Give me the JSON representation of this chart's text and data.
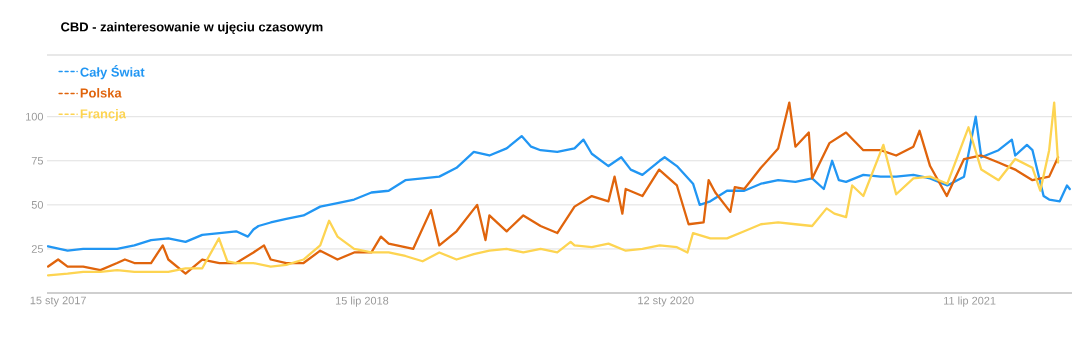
{
  "chart_data": {
    "type": "line",
    "title": "CBD - zainteresowanie w ujęciu czasowym",
    "xlim": [
      "2016-12-26",
      "2022-01-11"
    ],
    "ylim": [
      0,
      135
    ],
    "xticks": [
      {
        "value": "2017-01-15",
        "label": "15 sty 2017"
      },
      {
        "value": "2018-07-15",
        "label": "15 lip 2018"
      },
      {
        "value": "2020-01-12",
        "label": "12 sty 2020"
      },
      {
        "value": "2021-07-11",
        "label": "11 lip 2021"
      }
    ],
    "yticks": [
      25,
      50,
      75,
      100
    ],
    "grid": "y",
    "legend": "top left",
    "marker": "none",
    "line_style": "solid",
    "series": [
      {
        "name": "Cały Świat",
        "color": "#2196f3",
        "x": [
          "2016-12-28",
          "2017-02-01",
          "2017-03-01",
          "2017-04-01",
          "2017-05-01",
          "2017-06-01",
          "2017-07-01",
          "2017-08-01",
          "2017-09-01",
          "2017-10-01",
          "2017-11-01",
          "2017-12-01",
          "2017-12-22",
          "2018-01-01",
          "2018-01-10",
          "2018-02-01",
          "2018-03-01",
          "2018-04-01",
          "2018-05-01",
          "2018-06-01",
          "2018-07-01",
          "2018-08-01",
          "2018-09-01",
          "2018-10-01",
          "2018-11-01",
          "2018-12-01",
          "2019-01-01",
          "2019-02-01",
          "2019-03-01",
          "2019-04-01",
          "2019-04-28",
          "2019-05-15",
          "2019-06-01",
          "2019-07-01",
          "2019-08-01",
          "2019-08-17",
          "2019-09-01",
          "2019-10-01",
          "2019-10-24",
          "2019-11-10",
          "2019-12-01",
          "2020-01-01",
          "2020-01-10",
          "2020-02-01",
          "2020-03-01",
          "2020-03-13",
          "2020-04-01",
          "2020-05-01",
          "2020-06-01",
          "2020-07-01",
          "2020-08-01",
          "2020-09-01",
          "2020-10-01",
          "2020-10-22",
          "2020-11-06",
          "2020-11-18",
          "2020-12-01",
          "2021-01-01",
          "2021-02-01",
          "2021-03-01",
          "2021-04-01",
          "2021-05-01",
          "2021-06-01",
          "2021-07-01",
          "2021-07-22",
          "2021-08-01",
          "2021-09-01",
          "2021-09-25",
          "2021-10-01",
          "2021-10-22",
          "2021-11-01",
          "2021-11-21",
          "2021-12-01",
          "2021-12-20",
          "2022-01-02",
          "2022-01-07"
        ],
        "values": [
          26.5,
          24,
          25,
          25,
          25,
          27,
          30,
          31,
          29,
          33,
          34,
          35,
          32,
          36,
          38,
          40,
          42,
          44,
          49,
          51,
          53,
          57,
          58,
          64,
          65,
          66,
          71,
          80,
          78,
          82,
          89,
          83,
          81,
          80,
          82,
          87,
          79,
          72,
          77,
          70,
          67,
          75,
          77,
          72,
          62,
          50,
          52,
          58,
          58,
          62,
          64,
          63,
          65,
          59,
          75,
          64,
          63,
          67,
          66,
          66,
          67,
          65,
          61,
          66,
          100,
          77,
          81,
          87,
          78,
          84,
          81,
          55,
          53,
          52,
          61,
          59
        ]
      },
      {
        "name": "Polska",
        "color": "#e0640c",
        "x": [
          "2016-12-28",
          "2017-01-15",
          "2017-02-01",
          "2017-03-01",
          "2017-04-01",
          "2017-05-01",
          "2017-05-15",
          "2017-06-01",
          "2017-07-01",
          "2017-07-22",
          "2017-08-01",
          "2017-09-01",
          "2017-10-01",
          "2017-11-01",
          "2017-12-01",
          "2018-01-01",
          "2018-01-20",
          "2018-02-01",
          "2018-03-01",
          "2018-04-01",
          "2018-05-01",
          "2018-06-01",
          "2018-07-01",
          "2018-08-01",
          "2018-08-18",
          "2018-09-01",
          "2018-10-15",
          "2018-11-16",
          "2018-12-01",
          "2019-01-01",
          "2019-02-07",
          "2019-02-22",
          "2019-03-01",
          "2019-04-01",
          "2019-05-01",
          "2019-06-01",
          "2019-07-01",
          "2019-08-01",
          "2019-09-01",
          "2019-10-01",
          "2019-10-12",
          "2019-10-26",
          "2019-11-01",
          "2019-12-01",
          "2019-12-31",
          "2020-02-01",
          "2020-02-22",
          "2020-03-20",
          "2020-03-29",
          "2020-04-10",
          "2020-05-07",
          "2020-05-15",
          "2020-06-01",
          "2020-07-01",
          "2020-08-01",
          "2020-08-21",
          "2020-09-01",
          "2020-09-25",
          "2020-10-01",
          "2020-11-01",
          "2020-12-01",
          "2021-01-01",
          "2021-02-01",
          "2021-03-01",
          "2021-04-01",
          "2021-04-12",
          "2021-05-01",
          "2021-05-31",
          "2021-07-01",
          "2021-08-01",
          "2021-09-01",
          "2021-10-01",
          "2021-11-01",
          "2021-12-01",
          "2021-12-17"
        ],
        "values": [
          15,
          19,
          15,
          15,
          13,
          17,
          19,
          17,
          17,
          27,
          19,
          11,
          19,
          17,
          17,
          23,
          27,
          19,
          17,
          17,
          24,
          19,
          23,
          23,
          32,
          28,
          25,
          47,
          27,
          35,
          50,
          30,
          44,
          35,
          44,
          38,
          34,
          49,
          55,
          52,
          66,
          45,
          59,
          55,
          70,
          61,
          39,
          40,
          64,
          57,
          46,
          60,
          59,
          71,
          82,
          108,
          83,
          91,
          65,
          85,
          91,
          81,
          81,
          78,
          83,
          92,
          72,
          55,
          76,
          78,
          74,
          70,
          64,
          66,
          77
        ]
      },
      {
        "name": "Francja",
        "color": "#fdd451",
        "x": [
          "2016-12-28",
          "2017-02-01",
          "2017-03-01",
          "2017-04-01",
          "2017-05-01",
          "2017-06-01",
          "2017-07-01",
          "2017-08-01",
          "2017-09-01",
          "2017-10-01",
          "2017-10-31",
          "2017-11-15",
          "2017-12-01",
          "2018-01-01",
          "2018-02-01",
          "2018-03-01",
          "2018-04-01",
          "2018-05-01",
          "2018-05-17",
          "2018-06-01",
          "2018-07-01",
          "2018-08-01",
          "2018-09-01",
          "2018-10-01",
          "2018-11-01",
          "2018-12-01",
          "2019-01-01",
          "2019-02-01",
          "2019-03-01",
          "2019-04-01",
          "2019-05-01",
          "2019-06-01",
          "2019-07-01",
          "2019-07-25",
          "2019-08-01",
          "2019-09-01",
          "2019-10-01",
          "2019-11-01",
          "2019-12-01",
          "2020-01-01",
          "2020-02-01",
          "2020-02-20",
          "2020-03-01",
          "2020-04-01",
          "2020-05-01",
          "2020-06-01",
          "2020-07-01",
          "2020-08-01",
          "2020-09-01",
          "2020-10-01",
          "2020-10-27",
          "2020-11-10",
          "2020-12-01",
          "2020-12-12",
          "2021-01-01",
          "2021-02-06",
          "2021-03-01",
          "2021-04-01",
          "2021-05-01",
          "2021-06-01",
          "2021-07-09",
          "2021-08-01",
          "2021-09-01",
          "2021-10-01",
          "2021-11-01",
          "2021-11-15",
          "2021-12-01",
          "2021-12-10",
          "2021-12-17"
        ],
        "values": [
          10,
          11,
          12,
          12,
          13,
          12,
          12,
          12,
          14,
          14,
          31,
          18,
          17,
          17,
          15,
          16,
          19,
          27,
          41,
          32,
          25,
          23,
          23,
          21,
          18,
          23,
          19,
          22,
          24,
          25,
          23,
          25,
          23,
          29,
          27,
          26,
          28,
          24,
          25,
          27,
          26,
          23,
          34,
          31,
          31,
          35,
          39,
          40,
          39,
          38,
          48,
          45,
          43,
          61,
          55,
          84,
          56,
          65,
          66,
          62,
          94,
          70,
          64,
          76,
          71,
          58,
          81,
          108,
          74
        ]
      }
    ]
  }
}
